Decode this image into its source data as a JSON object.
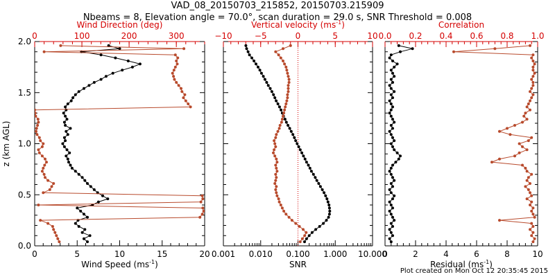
{
  "title": {
    "line1": "VAD_08_20150703_215852, 20150703.215909",
    "line2": "Nbeams = 8, Elevation angle = 70.0°, scan duration = 29.0 s, SNR Threshold = 0.008"
  },
  "footer": "Plot created on Mon Oct 12 20:35:45 2015",
  "colors": {
    "primary": "#000000",
    "secondary": "#b84a2c",
    "axis_top": "#d40000"
  },
  "chart_data": [
    {
      "type": "line",
      "name": "wind-panel",
      "ylabel": "z (km AGL)",
      "ylim": [
        0,
        2
      ],
      "yticks": [
        "0.0",
        "0.5",
        "1.0",
        "1.5",
        "2.0"
      ],
      "bottom_axis": {
        "label": "Wind Speed (ms",
        "label_sup": "-1",
        "label_tail": ")",
        "range": [
          0,
          20
        ],
        "ticks": [
          "0",
          "5",
          "10",
          "15",
          "20"
        ]
      },
      "top_axis": {
        "label": "Wind Direction (deg)",
        "range": [
          0,
          360
        ],
        "ticks": [
          "0",
          "100",
          "200",
          "300"
        ]
      },
      "series": [
        {
          "name": "Wind Speed",
          "axis": "bottom",
          "color": "#000000",
          "z": [
            0.04,
            0.07,
            0.1,
            0.13,
            0.16,
            0.19,
            0.22,
            0.25,
            0.28,
            0.31,
            0.34,
            0.37,
            0.4,
            0.43,
            0.46,
            0.49,
            0.52,
            0.55,
            0.58,
            0.61,
            0.64,
            0.67,
            0.7,
            0.73,
            0.76,
            0.79,
            0.82,
            0.85,
            0.88,
            0.91,
            0.94,
            0.97,
            1.0,
            1.03,
            1.06,
            1.09,
            1.12,
            1.15,
            1.18,
            1.21,
            1.24,
            1.27,
            1.3,
            1.33,
            1.36,
            1.39,
            1.42,
            1.45,
            1.48,
            1.51,
            1.54,
            1.57,
            1.6,
            1.63,
            1.66,
            1.69,
            1.72,
            1.75,
            1.78,
            1.81,
            1.84,
            1.87,
            1.9,
            1.93,
            1.96
          ],
          "values": [
            6.2,
            5.8,
            6.5,
            5.6,
            5.9,
            5.2,
            4.8,
            5.1,
            6.2,
            5.8,
            5.4,
            5.0,
            6.8,
            7.5,
            8.6,
            8.0,
            7.4,
            7.0,
            6.6,
            6.2,
            5.9,
            5.6,
            5.2,
            4.8,
            4.4,
            4.2,
            4.0,
            3.9,
            3.7,
            4.1,
            3.8,
            3.5,
            3.3,
            3.6,
            3.5,
            3.9,
            3.7,
            4.2,
            3.6,
            3.5,
            3.8,
            3.6,
            3.4,
            3.7,
            3.6,
            3.9,
            4.3,
            4.5,
            4.8,
            5.2,
            5.8,
            6.4,
            7.0,
            7.8,
            8.4,
            9.2,
            10.3,
            11.5,
            12.4,
            11.0,
            9.5,
            7.8,
            5.5,
            10.0,
            8.7
          ]
        },
        {
          "name": "Wind Direction",
          "axis": "top",
          "color": "#b84a2c",
          "z": [
            0.04,
            0.07,
            0.1,
            0.13,
            0.16,
            0.19,
            0.22,
            0.25,
            0.28,
            0.31,
            0.34,
            0.37,
            0.4,
            0.43,
            0.46,
            0.49,
            0.52,
            0.55,
            0.58,
            0.61,
            0.64,
            0.67,
            0.7,
            0.73,
            0.76,
            0.79,
            0.82,
            0.85,
            0.88,
            0.91,
            0.94,
            0.97,
            1.0,
            1.03,
            1.06,
            1.09,
            1.12,
            1.15,
            1.18,
            1.21,
            1.24,
            1.27,
            1.3,
            1.33,
            1.36,
            1.39,
            1.42,
            1.45,
            1.48,
            1.51,
            1.54,
            1.57,
            1.6,
            1.63,
            1.66,
            1.69,
            1.72,
            1.75,
            1.78,
            1.81,
            1.84,
            1.87,
            1.9,
            1.93,
            1.96
          ],
          "values": [
            52,
            49,
            46,
            43,
            40,
            38,
            28,
            12,
            350,
            355,
            358,
            356,
            8,
            352,
            356,
            355,
            18,
            32,
            36,
            40,
            28,
            22,
            20,
            16,
            18,
            21,
            25,
            22,
            16,
            10,
            8,
            16,
            18,
            12,
            10,
            5,
            3,
            4,
            6,
            8,
            7,
            2,
            1,
            0,
            330,
            325,
            320,
            315,
            318,
            312,
            310,
            305,
            300,
            296,
            294,
            292,
            295,
            298,
            302,
            300,
            303,
            298,
            20,
            316,
            55
          ]
        }
      ]
    },
    {
      "type": "line",
      "name": "vertical-velocity-panel",
      "ylim": [
        0,
        2
      ],
      "bottom_axis": {
        "label": "SNR",
        "scale": "log",
        "range": [
          0.001,
          10
        ],
        "ticks": [
          "0.001",
          "0.010",
          "0.100",
          "1.000",
          "10.000"
        ]
      },
      "top_axis": {
        "label": "Vertical velocity (ms",
        "label_sup": "-1",
        "label_tail": ")",
        "range": [
          -10,
          10
        ],
        "ticks": [
          "−10",
          "−5",
          "0",
          "5",
          "10"
        ]
      },
      "reference_line": {
        "axis": "top",
        "value": 0
      },
      "series": [
        {
          "name": "SNR",
          "axis": "bottom",
          "color": "#000000",
          "z": [
            0.04,
            0.07,
            0.1,
            0.13,
            0.16,
            0.19,
            0.22,
            0.25,
            0.28,
            0.31,
            0.34,
            0.37,
            0.4,
            0.43,
            0.46,
            0.49,
            0.52,
            0.55,
            0.58,
            0.61,
            0.64,
            0.67,
            0.7,
            0.73,
            0.76,
            0.79,
            0.82,
            0.85,
            0.88,
            0.91,
            0.94,
            0.97,
            1.0,
            1.03,
            1.06,
            1.09,
            1.12,
            1.15,
            1.18,
            1.21,
            1.24,
            1.27,
            1.3,
            1.33,
            1.36,
            1.39,
            1.42,
            1.45,
            1.48,
            1.51,
            1.54,
            1.57,
            1.6,
            1.63,
            1.66,
            1.69,
            1.72,
            1.75,
            1.78,
            1.81,
            1.84,
            1.87,
            1.9,
            1.93,
            1.96
          ],
          "values": [
            0.15,
            0.17,
            0.2,
            0.24,
            0.3,
            0.38,
            0.48,
            0.58,
            0.66,
            0.7,
            0.71,
            0.7,
            0.68,
            0.64,
            0.6,
            0.55,
            0.5,
            0.45,
            0.4,
            0.36,
            0.32,
            0.29,
            0.26,
            0.23,
            0.21,
            0.19,
            0.17,
            0.155,
            0.14,
            0.127,
            0.115,
            0.105,
            0.095,
            0.087,
            0.08,
            0.073,
            0.066,
            0.06,
            0.054,
            0.049,
            0.045,
            0.041,
            0.038,
            0.035,
            0.032,
            0.029,
            0.026,
            0.024,
            0.022,
            0.02,
            0.018,
            0.016,
            0.0145,
            0.013,
            0.0118,
            0.0105,
            0.0095,
            0.0085,
            0.0075,
            0.0066,
            0.0058,
            0.005,
            0.0046,
            0.0042,
            0.004
          ]
        },
        {
          "name": "Vertical velocity",
          "axis": "top",
          "color": "#b84a2c",
          "z": [
            0.04,
            0.07,
            0.1,
            0.13,
            0.16,
            0.19,
            0.22,
            0.25,
            0.28,
            0.31,
            0.34,
            0.37,
            0.4,
            0.43,
            0.46,
            0.49,
            0.52,
            0.55,
            0.58,
            0.61,
            0.64,
            0.67,
            0.7,
            0.73,
            0.76,
            0.79,
            0.82,
            0.85,
            0.88,
            0.91,
            0.94,
            0.97,
            1.0,
            1.03,
            1.06,
            1.09,
            1.12,
            1.15,
            1.18,
            1.21,
            1.24,
            1.27,
            1.3,
            1.33,
            1.36,
            1.39,
            1.42,
            1.45,
            1.48,
            1.51,
            1.54,
            1.57,
            1.6,
            1.63,
            1.66,
            1.69,
            1.72,
            1.75,
            1.78,
            1.81,
            1.84,
            1.87,
            1.9,
            1.93,
            1.96
          ],
          "values": [
            0.3,
            0.6,
            0.9,
            1.1,
            0.7,
            0.2,
            -0.3,
            -0.8,
            -1.2,
            -1.6,
            -1.9,
            -2.1,
            -2.3,
            -2.5,
            -2.6,
            -2.8,
            -2.9,
            -3.0,
            -2.9,
            -3.1,
            -3.0,
            -2.9,
            -3.0,
            -2.8,
            -2.9,
            -3.0,
            -2.8,
            -2.9,
            -3.1,
            -3.3,
            -3.2,
            -3.0,
            -3.1,
            -3.2,
            -3.0,
            -2.9,
            -2.7,
            -2.5,
            -2.4,
            -2.2,
            -2.1,
            -2.0,
            -1.9,
            -1.8,
            -1.7,
            -1.6,
            -1.5,
            -1.4,
            -1.4,
            -1.3,
            -1.3,
            -1.3,
            -1.2,
            -1.2,
            -1.3,
            -1.4,
            -1.5,
            -1.6,
            -1.8,
            -2.0,
            -2.3,
            -2.6,
            -3.0,
            -2.0,
            -1.0
          ]
        }
      ]
    },
    {
      "type": "line",
      "name": "residual-panel",
      "ylim": [
        0,
        2
      ],
      "bottom_axis": {
        "label": "Residual (ms",
        "label_sup": "-1",
        "label_tail": ")",
        "range": [
          0,
          10
        ],
        "ticks": [
          "0",
          "2",
          "4",
          "6",
          "8",
          "10"
        ]
      },
      "top_axis": {
        "label": "Correlation",
        "range": [
          0,
          1
        ],
        "ticks": [
          "0.0",
          "0.2",
          "0.4",
          "0.6",
          "0.8",
          "1.0"
        ]
      },
      "series": [
        {
          "name": "Residual",
          "axis": "bottom",
          "color": "#000000",
          "z": [
            0.04,
            0.07,
            0.1,
            0.13,
            0.16,
            0.19,
            0.22,
            0.25,
            0.28,
            0.31,
            0.34,
            0.37,
            0.4,
            0.43,
            0.46,
            0.49,
            0.52,
            0.55,
            0.58,
            0.61,
            0.64,
            0.67,
            0.7,
            0.73,
            0.76,
            0.79,
            0.82,
            0.85,
            0.88,
            0.91,
            0.94,
            0.97,
            1.0,
            1.03,
            1.06,
            1.09,
            1.12,
            1.15,
            1.18,
            1.21,
            1.24,
            1.27,
            1.3,
            1.33,
            1.36,
            1.39,
            1.42,
            1.45,
            1.48,
            1.51,
            1.54,
            1.57,
            1.6,
            1.63,
            1.66,
            1.69,
            1.72,
            1.75,
            1.78,
            1.81,
            1.84,
            1.87,
            1.9,
            1.93,
            1.96
          ],
          "values": [
            0.4,
            0.3,
            0.5,
            0.4,
            0.3,
            0.5,
            0.4,
            0.6,
            0.5,
            0.4,
            0.3,
            0.5,
            0.4,
            0.3,
            0.5,
            0.6,
            0.4,
            0.3,
            0.5,
            0.4,
            0.6,
            0.5,
            0.4,
            0.3,
            0.4,
            0.5,
            0.7,
            0.9,
            1.0,
            0.8,
            0.6,
            0.5,
            0.4,
            0.6,
            0.5,
            0.4,
            0.3,
            0.5,
            0.4,
            0.6,
            0.5,
            0.4,
            0.3,
            0.4,
            0.5,
            0.4,
            0.3,
            0.5,
            0.4,
            0.6,
            0.4,
            0.3,
            0.5,
            0.4,
            0.6,
            0.5,
            0.4,
            0.6,
            0.8,
            0.5,
            0.3,
            0.4,
            1.0,
            1.8,
            0.9
          ]
        },
        {
          "name": "Correlation",
          "axis": "top",
          "color": "#b84a2c",
          "z": [
            0.04,
            0.07,
            0.1,
            0.13,
            0.16,
            0.19,
            0.22,
            0.25,
            0.28,
            0.31,
            0.34,
            0.37,
            0.4,
            0.43,
            0.46,
            0.49,
            0.52,
            0.55,
            0.58,
            0.61,
            0.64,
            0.67,
            0.7,
            0.73,
            0.76,
            0.79,
            0.82,
            0.85,
            0.88,
            0.91,
            0.94,
            0.97,
            1.0,
            1.03,
            1.06,
            1.09,
            1.12,
            1.15,
            1.18,
            1.21,
            1.24,
            1.27,
            1.3,
            1.33,
            1.36,
            1.39,
            1.42,
            1.45,
            1.48,
            1.51,
            1.54,
            1.57,
            1.6,
            1.63,
            1.66,
            1.69,
            1.72,
            1.75,
            1.78,
            1.81,
            1.84,
            1.87,
            1.9,
            1.93,
            1.96
          ],
          "values": [
            0.97,
            0.98,
            0.96,
            0.97,
            0.95,
            0.97,
            0.96,
            0.75,
            0.98,
            0.97,
            0.96,
            0.97,
            0.95,
            0.96,
            0.93,
            0.96,
            0.95,
            0.94,
            0.92,
            0.95,
            0.93,
            0.94,
            0.96,
            0.93,
            0.92,
            0.9,
            0.7,
            0.75,
            0.85,
            0.88,
            0.93,
            0.9,
            0.88,
            0.94,
            0.96,
            0.82,
            0.75,
            0.8,
            0.85,
            0.9,
            0.93,
            0.91,
            0.92,
            0.95,
            0.93,
            0.94,
            0.95,
            0.96,
            0.97,
            0.95,
            0.96,
            0.97,
            0.97,
            0.96,
            0.97,
            0.98,
            0.97,
            0.97,
            0.98,
            0.97,
            0.96,
            0.97,
            0.45,
            0.72,
            0.95
          ]
        }
      ]
    }
  ]
}
